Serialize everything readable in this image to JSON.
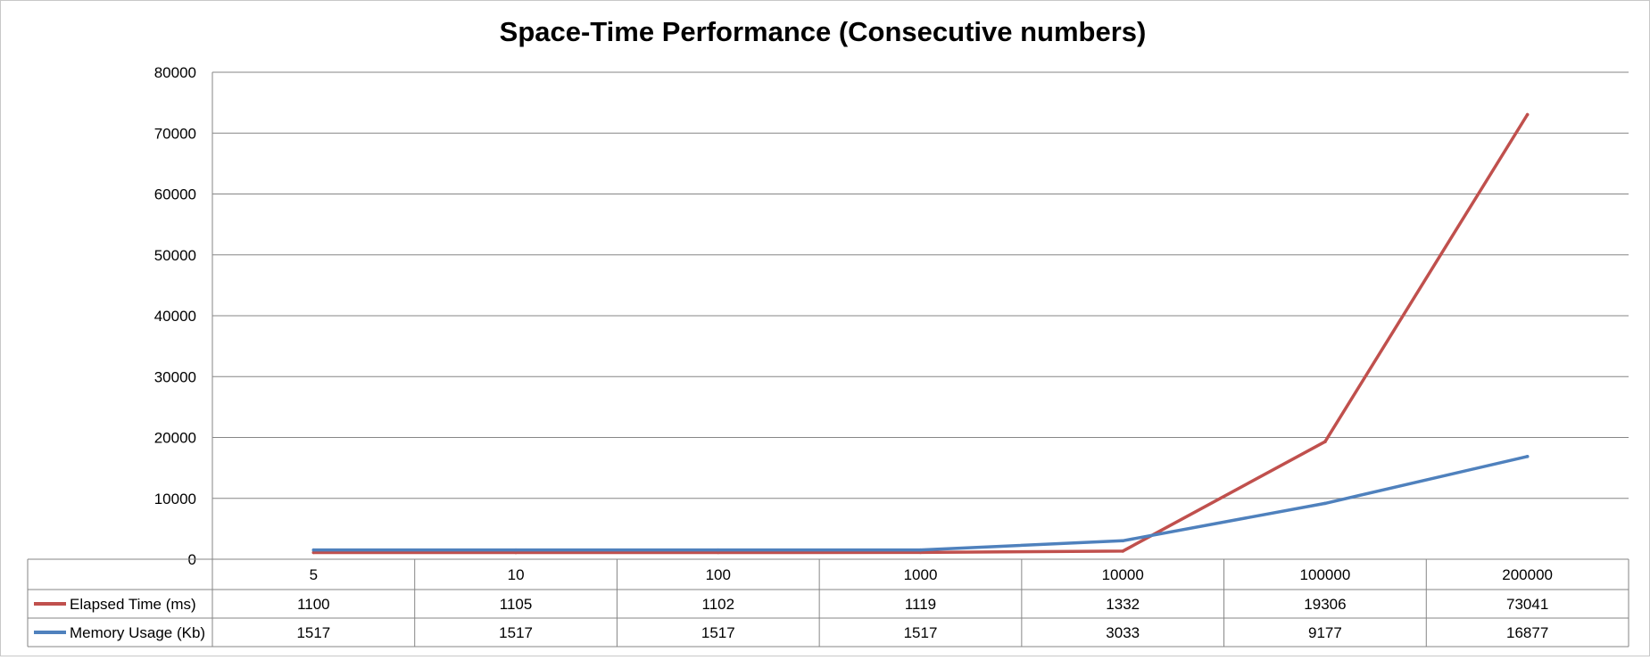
{
  "chart_data": {
    "type": "line",
    "title": "Space-Time Performance (Consecutive numbers)",
    "categories": [
      "5",
      "10",
      "100",
      "1000",
      "10000",
      "100000",
      "200000"
    ],
    "series": [
      {
        "name": "Elapsed Time (ms)",
        "color": "#C0504D",
        "values": [
          1100,
          1105,
          1102,
          1119,
          1332,
          19306,
          73041
        ]
      },
      {
        "name": "Memory Usage (Kb)",
        "color": "#4F81BD",
        "values": [
          1517,
          1517,
          1517,
          1517,
          3033,
          9177,
          16877
        ]
      }
    ],
    "ylim": [
      0,
      80000
    ],
    "yticks": [
      0,
      10000,
      20000,
      30000,
      40000,
      50000,
      60000,
      70000,
      80000
    ],
    "grid": true,
    "legend": "data-table-bottom"
  }
}
